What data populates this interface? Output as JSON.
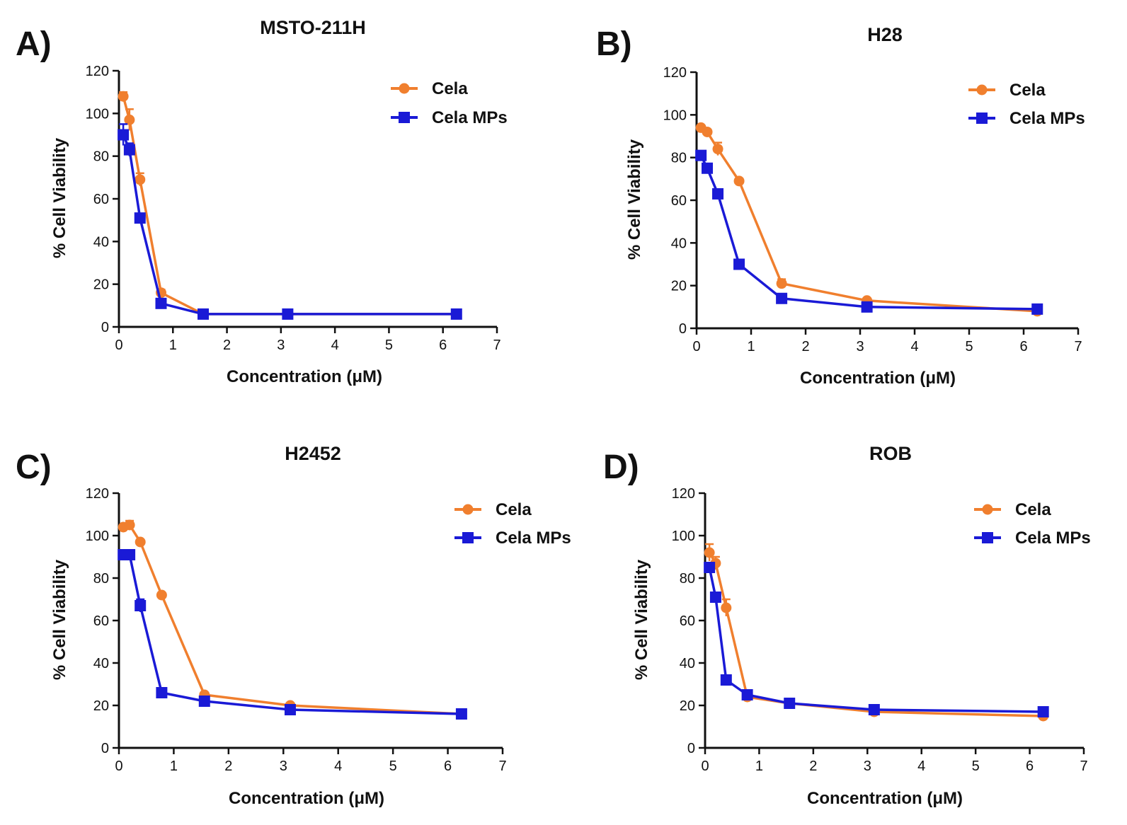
{
  "panels": [
    {
      "letter": "A)",
      "chart_data": {
        "type": "line",
        "title": "MSTO-211H",
        "xlabel": "Concentration (μM)",
        "ylabel": "% Cell Viability",
        "xlim": [
          0,
          7
        ],
        "ylim": [
          0,
          120
        ],
        "xticks": [
          0,
          1,
          2,
          3,
          4,
          5,
          6,
          7
        ],
        "yticks": [
          0,
          20,
          40,
          60,
          80,
          100,
          120
        ],
        "legend": "top-right",
        "grid": false,
        "series": [
          {
            "name": "Cela",
            "color": "#f07f2e",
            "marker": "circle",
            "x": [
              0.08,
              0.195,
              0.39,
              0.78,
              1.56,
              3.125,
              6.25
            ],
            "y": [
              108,
              97,
              69,
              16,
              6,
              6,
              6
            ],
            "err": [
              2,
              5,
              3,
              1.5,
              1,
              1,
              1
            ]
          },
          {
            "name": "Cela MPs",
            "color": "#1a1ad6",
            "marker": "square",
            "x": [
              0.08,
              0.195,
              0.39,
              0.78,
              1.56,
              3.125,
              6.25
            ],
            "y": [
              90,
              83,
              51,
              11,
              6,
              6,
              6
            ],
            "err": [
              5,
              3,
              2,
              1.5,
              1,
              1,
              1
            ]
          }
        ]
      }
    },
    {
      "letter": "B)",
      "chart_data": {
        "type": "line",
        "title": "H28",
        "xlabel": "Concentration (μM)",
        "ylabel": "% Cell Viability",
        "xlim": [
          0,
          7
        ],
        "ylim": [
          0,
          120
        ],
        "xticks": [
          0,
          1,
          2,
          3,
          4,
          5,
          6,
          7
        ],
        "yticks": [
          0,
          20,
          40,
          60,
          80,
          100,
          120
        ],
        "legend": "top-right",
        "grid": false,
        "series": [
          {
            "name": "Cela",
            "color": "#f07f2e",
            "marker": "circle",
            "x": [
              0.08,
              0.195,
              0.39,
              0.78,
              1.56,
              3.125,
              6.25
            ],
            "y": [
              94,
              92,
              84,
              69,
              21,
              13,
              8
            ],
            "err": [
              1,
              1,
              3,
              1,
              2,
              1,
              1
            ]
          },
          {
            "name": "Cela MPs",
            "color": "#1a1ad6",
            "marker": "square",
            "x": [
              0.08,
              0.195,
              0.39,
              0.78,
              1.56,
              3.125,
              6.25
            ],
            "y": [
              81,
              75,
              63,
              30,
              14,
              10,
              9
            ],
            "err": [
              1,
              1,
              1,
              1,
              1,
              1,
              1
            ]
          }
        ]
      }
    },
    {
      "letter": "C)",
      "chart_data": {
        "type": "line",
        "title": "H2452",
        "xlabel": "Concentration (μM)",
        "ylabel": "% Cell Viability",
        "xlim": [
          0,
          7
        ],
        "ylim": [
          0,
          120
        ],
        "xticks": [
          0,
          1,
          2,
          3,
          4,
          5,
          6,
          7
        ],
        "yticks": [
          0,
          20,
          40,
          60,
          80,
          100,
          120
        ],
        "legend": "top-right",
        "grid": false,
        "series": [
          {
            "name": "Cela",
            "color": "#f07f2e",
            "marker": "circle",
            "x": [
              0.08,
              0.195,
              0.39,
              0.78,
              1.56,
              3.125,
              6.25
            ],
            "y": [
              104,
              105,
              97,
              72,
              25,
              20,
              16
            ],
            "err": [
              1,
              2,
              1,
              1,
              1,
              1,
              1
            ]
          },
          {
            "name": "Cela MPs",
            "color": "#1a1ad6",
            "marker": "square",
            "x": [
              0.08,
              0.195,
              0.39,
              0.78,
              1.56,
              3.125,
              6.25
            ],
            "y": [
              91,
              91,
              67,
              26,
              22,
              18,
              16
            ],
            "err": [
              1,
              1,
              3,
              1,
              1,
              1,
              1
            ]
          }
        ]
      }
    },
    {
      "letter": "D)",
      "chart_data": {
        "type": "line",
        "title": "ROB",
        "xlabel": "Concentration (μM)",
        "ylabel": "% Cell Viability",
        "xlim": [
          0,
          7
        ],
        "ylim": [
          0,
          120
        ],
        "xticks": [
          0,
          1,
          2,
          3,
          4,
          5,
          6,
          7
        ],
        "yticks": [
          0,
          20,
          40,
          60,
          80,
          100,
          120
        ],
        "legend": "top-right",
        "grid": false,
        "series": [
          {
            "name": "Cela",
            "color": "#f07f2e",
            "marker": "circle",
            "x": [
              0.08,
              0.195,
              0.39,
              0.78,
              1.56,
              3.125,
              6.25
            ],
            "y": [
              92,
              87,
              66,
              24,
              21,
              17,
              15
            ],
            "err": [
              4,
              3,
              4,
              1,
              1,
              1,
              1
            ]
          },
          {
            "name": "Cela MPs",
            "color": "#1a1ad6",
            "marker": "square",
            "x": [
              0.08,
              0.195,
              0.39,
              0.78,
              1.56,
              3.125,
              6.25
            ],
            "y": [
              85,
              71,
              32,
              25,
              21,
              18,
              17
            ],
            "err": [
              2,
              2,
              1,
              1,
              1,
              1,
              1
            ]
          }
        ]
      }
    }
  ]
}
